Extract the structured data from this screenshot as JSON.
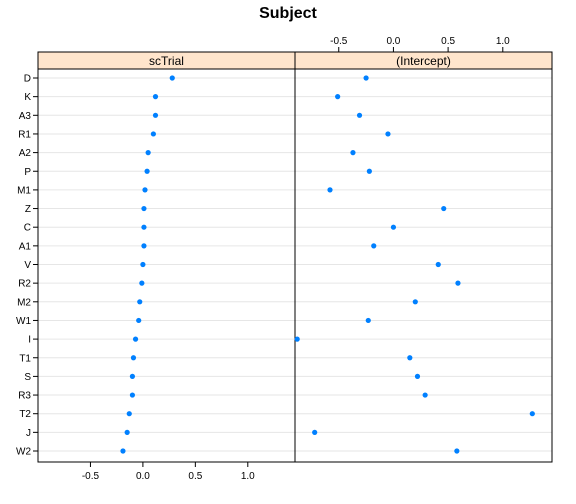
{
  "chart_data": {
    "type": "scatter",
    "title": "Subject",
    "categories": [
      "D",
      "K",
      "A3",
      "R1",
      "A2",
      "P",
      "M1",
      "Z",
      "C",
      "A1",
      "V",
      "R2",
      "M2",
      "W1",
      "I",
      "T1",
      "S",
      "R3",
      "T2",
      "J",
      "W2"
    ],
    "panels": [
      {
        "name": "scTrial",
        "xlim": [
          -1.0,
          1.45
        ],
        "ticks": [
          -0.5,
          0.0,
          0.5,
          1.0
        ],
        "tick_labels": [
          "-0.5",
          "0.0",
          "0.5",
          "1.0"
        ],
        "values": [
          0.28,
          0.12,
          0.12,
          0.1,
          0.05,
          0.04,
          0.02,
          0.01,
          0.01,
          0.01,
          0.0,
          -0.01,
          -0.03,
          -0.04,
          -0.07,
          -0.09,
          -0.1,
          -0.1,
          -0.13,
          -0.15,
          -0.19
        ]
      },
      {
        "name": "(Intercept)",
        "xlim": [
          -0.9,
          1.45
        ],
        "ticks": [
          -0.5,
          0.0,
          0.5,
          1.0
        ],
        "tick_labels": [
          "-0.5",
          "0.0",
          "0.5",
          "1.0"
        ],
        "values": [
          -0.25,
          -0.51,
          -0.31,
          -0.05,
          -0.37,
          -0.22,
          -0.58,
          0.46,
          0.0,
          -0.18,
          0.41,
          0.59,
          0.2,
          -0.23,
          -0.88,
          0.15,
          0.22,
          0.29,
          1.27,
          -0.72,
          0.58
        ]
      }
    ],
    "point_color": "#0080ff",
    "strip_color": "#ffe5cc",
    "grid": true
  }
}
